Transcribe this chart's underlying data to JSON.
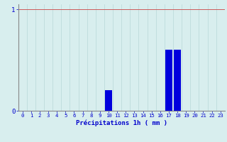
{
  "categories": [
    0,
    1,
    2,
    3,
    4,
    5,
    6,
    7,
    8,
    9,
    10,
    11,
    12,
    13,
    14,
    15,
    16,
    17,
    18,
    19,
    20,
    21,
    22,
    23
  ],
  "values": [
    0,
    0,
    0,
    0,
    0,
    0,
    0,
    0,
    0,
    0,
    0.2,
    0,
    0,
    0,
    0,
    0,
    0,
    0.6,
    0.6,
    0,
    0,
    0,
    0,
    0
  ],
  "bar_color": "#0000dd",
  "background_color": "#d8eeee",
  "grid_color_v": "#b8d8d8",
  "grid_color_h": "#cc4444",
  "xlabel": "Précipitations 1h ( mm )",
  "ylim": [
    0,
    1.05
  ],
  "xlim": [
    -0.5,
    23.5
  ],
  "ytick_vals": [
    0,
    1
  ],
  "ytick_labels": [
    "0",
    "1"
  ],
  "xticks": [
    0,
    1,
    2,
    3,
    4,
    5,
    6,
    7,
    8,
    9,
    10,
    11,
    12,
    13,
    14,
    15,
    16,
    17,
    18,
    19,
    20,
    21,
    22,
    23
  ],
  "xlabel_color": "#0000cc",
  "tick_color": "#0000cc",
  "bar_width": 0.85
}
